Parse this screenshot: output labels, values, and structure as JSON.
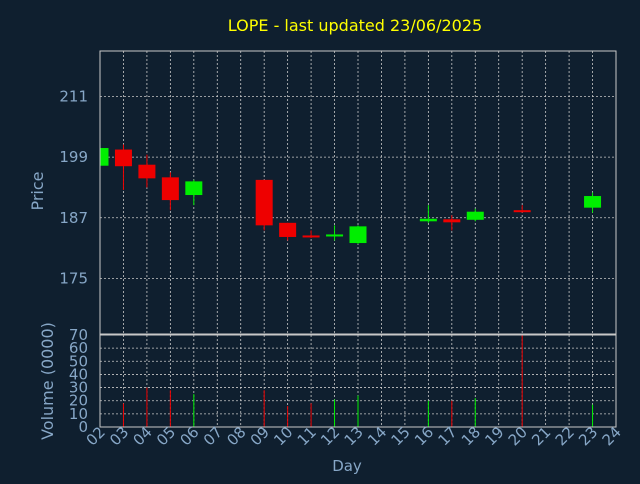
{
  "colors": {
    "background": "#0f1f2f",
    "title": "#ffff00",
    "axis_text": "#87a7c7",
    "frame": "#c8c8c8",
    "grid": "#c8c8c8",
    "up": "#00ee00",
    "down": "#ee0000"
  },
  "chart_data": {
    "type": "candlestick",
    "title": "LOPE - last updated 23/06/2025",
    "xlabel": "Day",
    "price_panel": {
      "ylabel": "Price",
      "ylim": [
        164,
        220
      ],
      "yticks": [
        175,
        187,
        199,
        211
      ],
      "grid": true
    },
    "volume_panel": {
      "ylabel": "Volume (0000)",
      "ylim": [
        0,
        70
      ],
      "yticks": [
        0,
        10,
        20,
        30,
        40,
        50,
        60,
        70
      ],
      "grid": true
    },
    "x_ticks": [
      "02",
      "03",
      "04",
      "05",
      "06",
      "07",
      "08",
      "09",
      "10",
      "11",
      "12",
      "13",
      "14",
      "15",
      "16",
      "17",
      "18",
      "19",
      "20",
      "21",
      "22",
      "23",
      "24"
    ],
    "candles": [
      {
        "day": "02",
        "open": 197.3,
        "high": 201.0,
        "low": 197.0,
        "close": 200.8,
        "volume": 22
      },
      {
        "day": "03",
        "open": 200.5,
        "high": 201.5,
        "low": 192.5,
        "close": 197.2,
        "volume": 18
      },
      {
        "day": "04",
        "open": 197.5,
        "high": 199.5,
        "low": 193.0,
        "close": 194.8,
        "volume": 30
      },
      {
        "day": "05",
        "open": 195.0,
        "high": 196.0,
        "low": 188.5,
        "close": 190.5,
        "volume": 28
      },
      {
        "day": "06",
        "open": 191.5,
        "high": 194.5,
        "low": 189.5,
        "close": 194.2,
        "volume": 25
      },
      {
        "day": "09",
        "open": 194.5,
        "high": 194.5,
        "low": 184.5,
        "close": 185.5,
        "volume": 28
      },
      {
        "day": "10",
        "open": 186.0,
        "high": 186.0,
        "low": 182.5,
        "close": 183.2,
        "volume": 16
      },
      {
        "day": "11",
        "open": 183.5,
        "high": 184.5,
        "low": 183.0,
        "close": 183.3,
        "volume": 18
      },
      {
        "day": "12",
        "open": 183.3,
        "high": 185.5,
        "low": 182.5,
        "close": 183.7,
        "volume": 21
      },
      {
        "day": "13",
        "open": 182.0,
        "high": 185.5,
        "low": 181.8,
        "close": 185.3,
        "volume": 24
      },
      {
        "day": "16",
        "open": 186.3,
        "high": 189.5,
        "low": 186.0,
        "close": 186.8,
        "volume": 20
      },
      {
        "day": "17",
        "open": 186.7,
        "high": 187.5,
        "low": 184.5,
        "close": 186.1,
        "volume": 20
      },
      {
        "day": "18",
        "open": 186.6,
        "high": 188.8,
        "low": 186.3,
        "close": 188.2,
        "volume": 22
      },
      {
        "day": "20",
        "open": 188.5,
        "high": 189.5,
        "low": 188.0,
        "close": 188.4,
        "volume": 70
      },
      {
        "day": "23",
        "open": 189.0,
        "high": 192.0,
        "low": 188.0,
        "close": 191.3,
        "volume": 17
      }
    ]
  }
}
